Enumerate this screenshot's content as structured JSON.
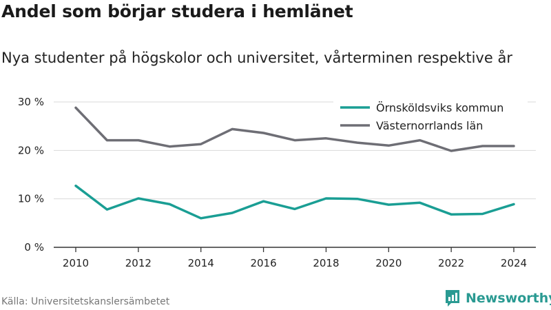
{
  "header": {
    "title": "Andel som börjar studera i hemlänet",
    "subtitle": "Nya studenter på högskolor och universitet, vårterminen respektive år"
  },
  "footer": {
    "source": "Källa: Universitetskanslersämbetet",
    "brand": "Newsworthy"
  },
  "colors": {
    "kommun": "#1a9e94",
    "lan": "#6e6e75",
    "grid": "#d9d9d9",
    "axis": "#333333",
    "brand": "#2a9a92"
  },
  "icons": {
    "brand": "newsworthy-logo-icon"
  },
  "chart_data": {
    "type": "line",
    "x": [
      2010,
      2011,
      2012,
      2013,
      2014,
      2015,
      2016,
      2017,
      2018,
      2019,
      2020,
      2021,
      2022,
      2023,
      2024
    ],
    "series": [
      {
        "name": "Örnsköldsviks kommun",
        "values": [
          12.7,
          7.8,
          10.1,
          8.9,
          6.0,
          7.1,
          9.5,
          7.9,
          10.1,
          10.0,
          8.8,
          9.2,
          6.8,
          6.9,
          8.9
        ]
      },
      {
        "name": "Västernorrlands län",
        "values": [
          28.8,
          22.1,
          22.1,
          20.8,
          21.3,
          24.4,
          23.6,
          22.1,
          22.5,
          21.6,
          21.0,
          22.1,
          19.9,
          20.9,
          20.9
        ]
      }
    ],
    "ylim": [
      0,
      30
    ],
    "yticks": [
      0,
      10,
      20,
      30
    ],
    "ytick_labels": [
      "0 %",
      "10 %",
      "20 %",
      "30 %"
    ],
    "xticks": [
      2010,
      2012,
      2014,
      2016,
      2018,
      2020,
      2022,
      2024
    ],
    "xlabel": "",
    "ylabel": "",
    "grid": true,
    "legend_position": "top-right"
  }
}
